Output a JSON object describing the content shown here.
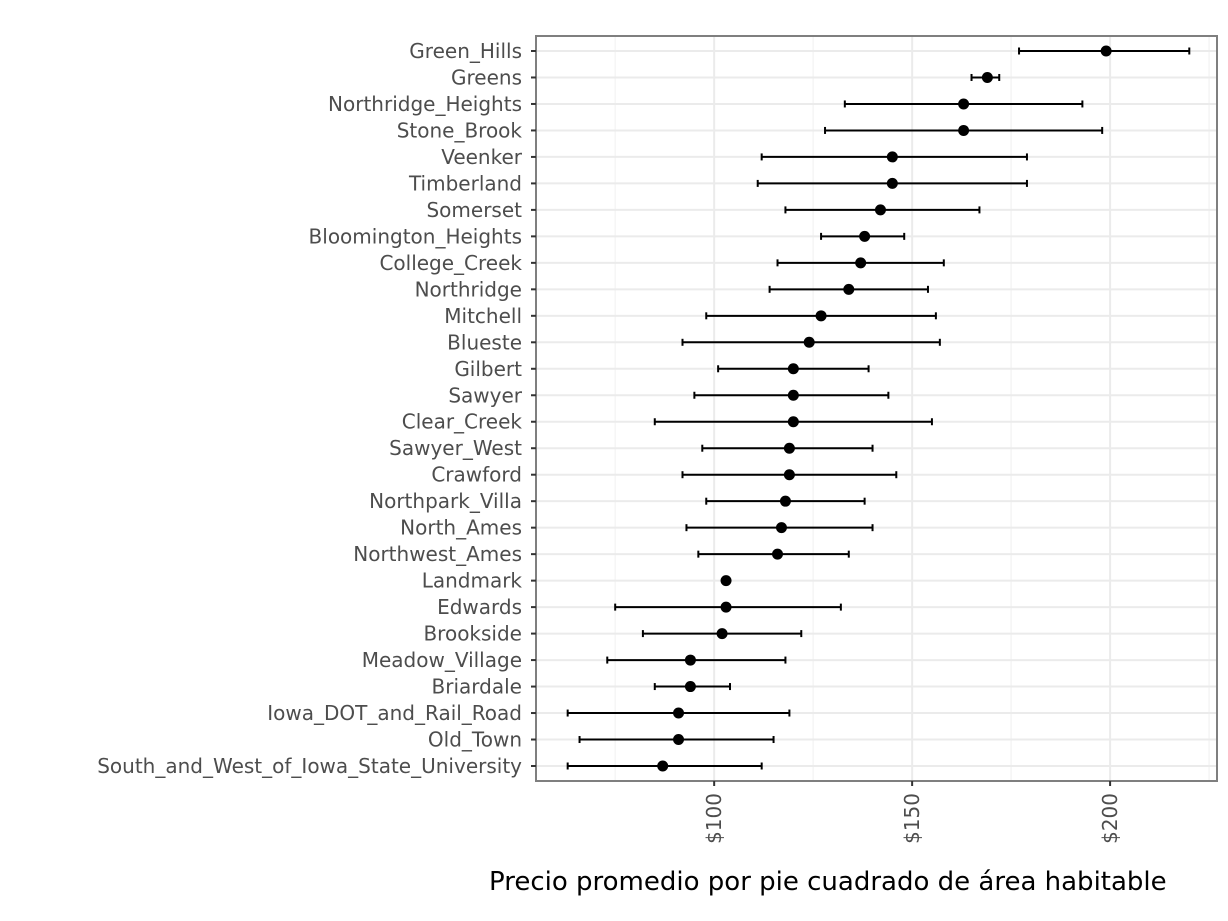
{
  "chart_data": {
    "type": "scatter",
    "subtype": "point-with-errorbars",
    "orientation": "horizontal",
    "title": "",
    "xlabel": "Precio  promedio por pie cuadrado de área habitable",
    "ylabel": "",
    "xlim": [
      55,
      227
    ],
    "x_ticks": [
      100,
      150,
      200
    ],
    "x_tick_labels": [
      "$100",
      "$150",
      "$200"
    ],
    "grid": true,
    "legend": "none",
    "colors": {
      "point": "#000000",
      "errorbar": "#000000",
      "grid_major": "#ebebeb",
      "grid_minor": "#f5f5f5",
      "panel_border": "#7f7f7f"
    },
    "series": [
      {
        "categories": [
          "Green_Hills",
          "Greens",
          "Northridge_Heights",
          "Stone_Brook",
          "Veenker",
          "Timberland",
          "Somerset",
          "Bloomington_Heights",
          "College_Creek",
          "Northridge",
          "Mitchell",
          "Blueste",
          "Gilbert",
          "Sawyer",
          "Clear_Creek",
          "Sawyer_West",
          "Crawford",
          "Northpark_Villa",
          "North_Ames",
          "Northwest_Ames",
          "Landmark",
          "Edwards",
          "Brookside",
          "Meadow_Village",
          "Briardale",
          "Iowa_DOT_and_Rail_Road",
          "Old_Town",
          "South_and_West_of_Iowa_State_University"
        ],
        "mean": [
          199,
          169,
          163,
          163,
          145,
          145,
          142,
          138,
          137,
          134,
          127,
          124,
          120,
          120,
          120,
          119,
          119,
          118,
          117,
          116,
          103,
          103,
          102,
          94,
          94,
          91,
          91,
          87
        ],
        "lower": [
          177,
          165,
          133,
          128,
          112,
          111,
          118,
          127,
          116,
          114,
          98,
          92,
          101,
          95,
          85,
          97,
          92,
          98,
          93,
          96,
          103,
          75,
          82,
          73,
          85,
          63,
          66,
          63
        ],
        "upper": [
          220,
          172,
          193,
          198,
          179,
          179,
          167,
          148,
          158,
          154,
          156,
          157,
          139,
          144,
          155,
          140,
          146,
          138,
          140,
          134,
          103,
          132,
          122,
          118,
          104,
          119,
          115,
          112
        ]
      }
    ]
  }
}
